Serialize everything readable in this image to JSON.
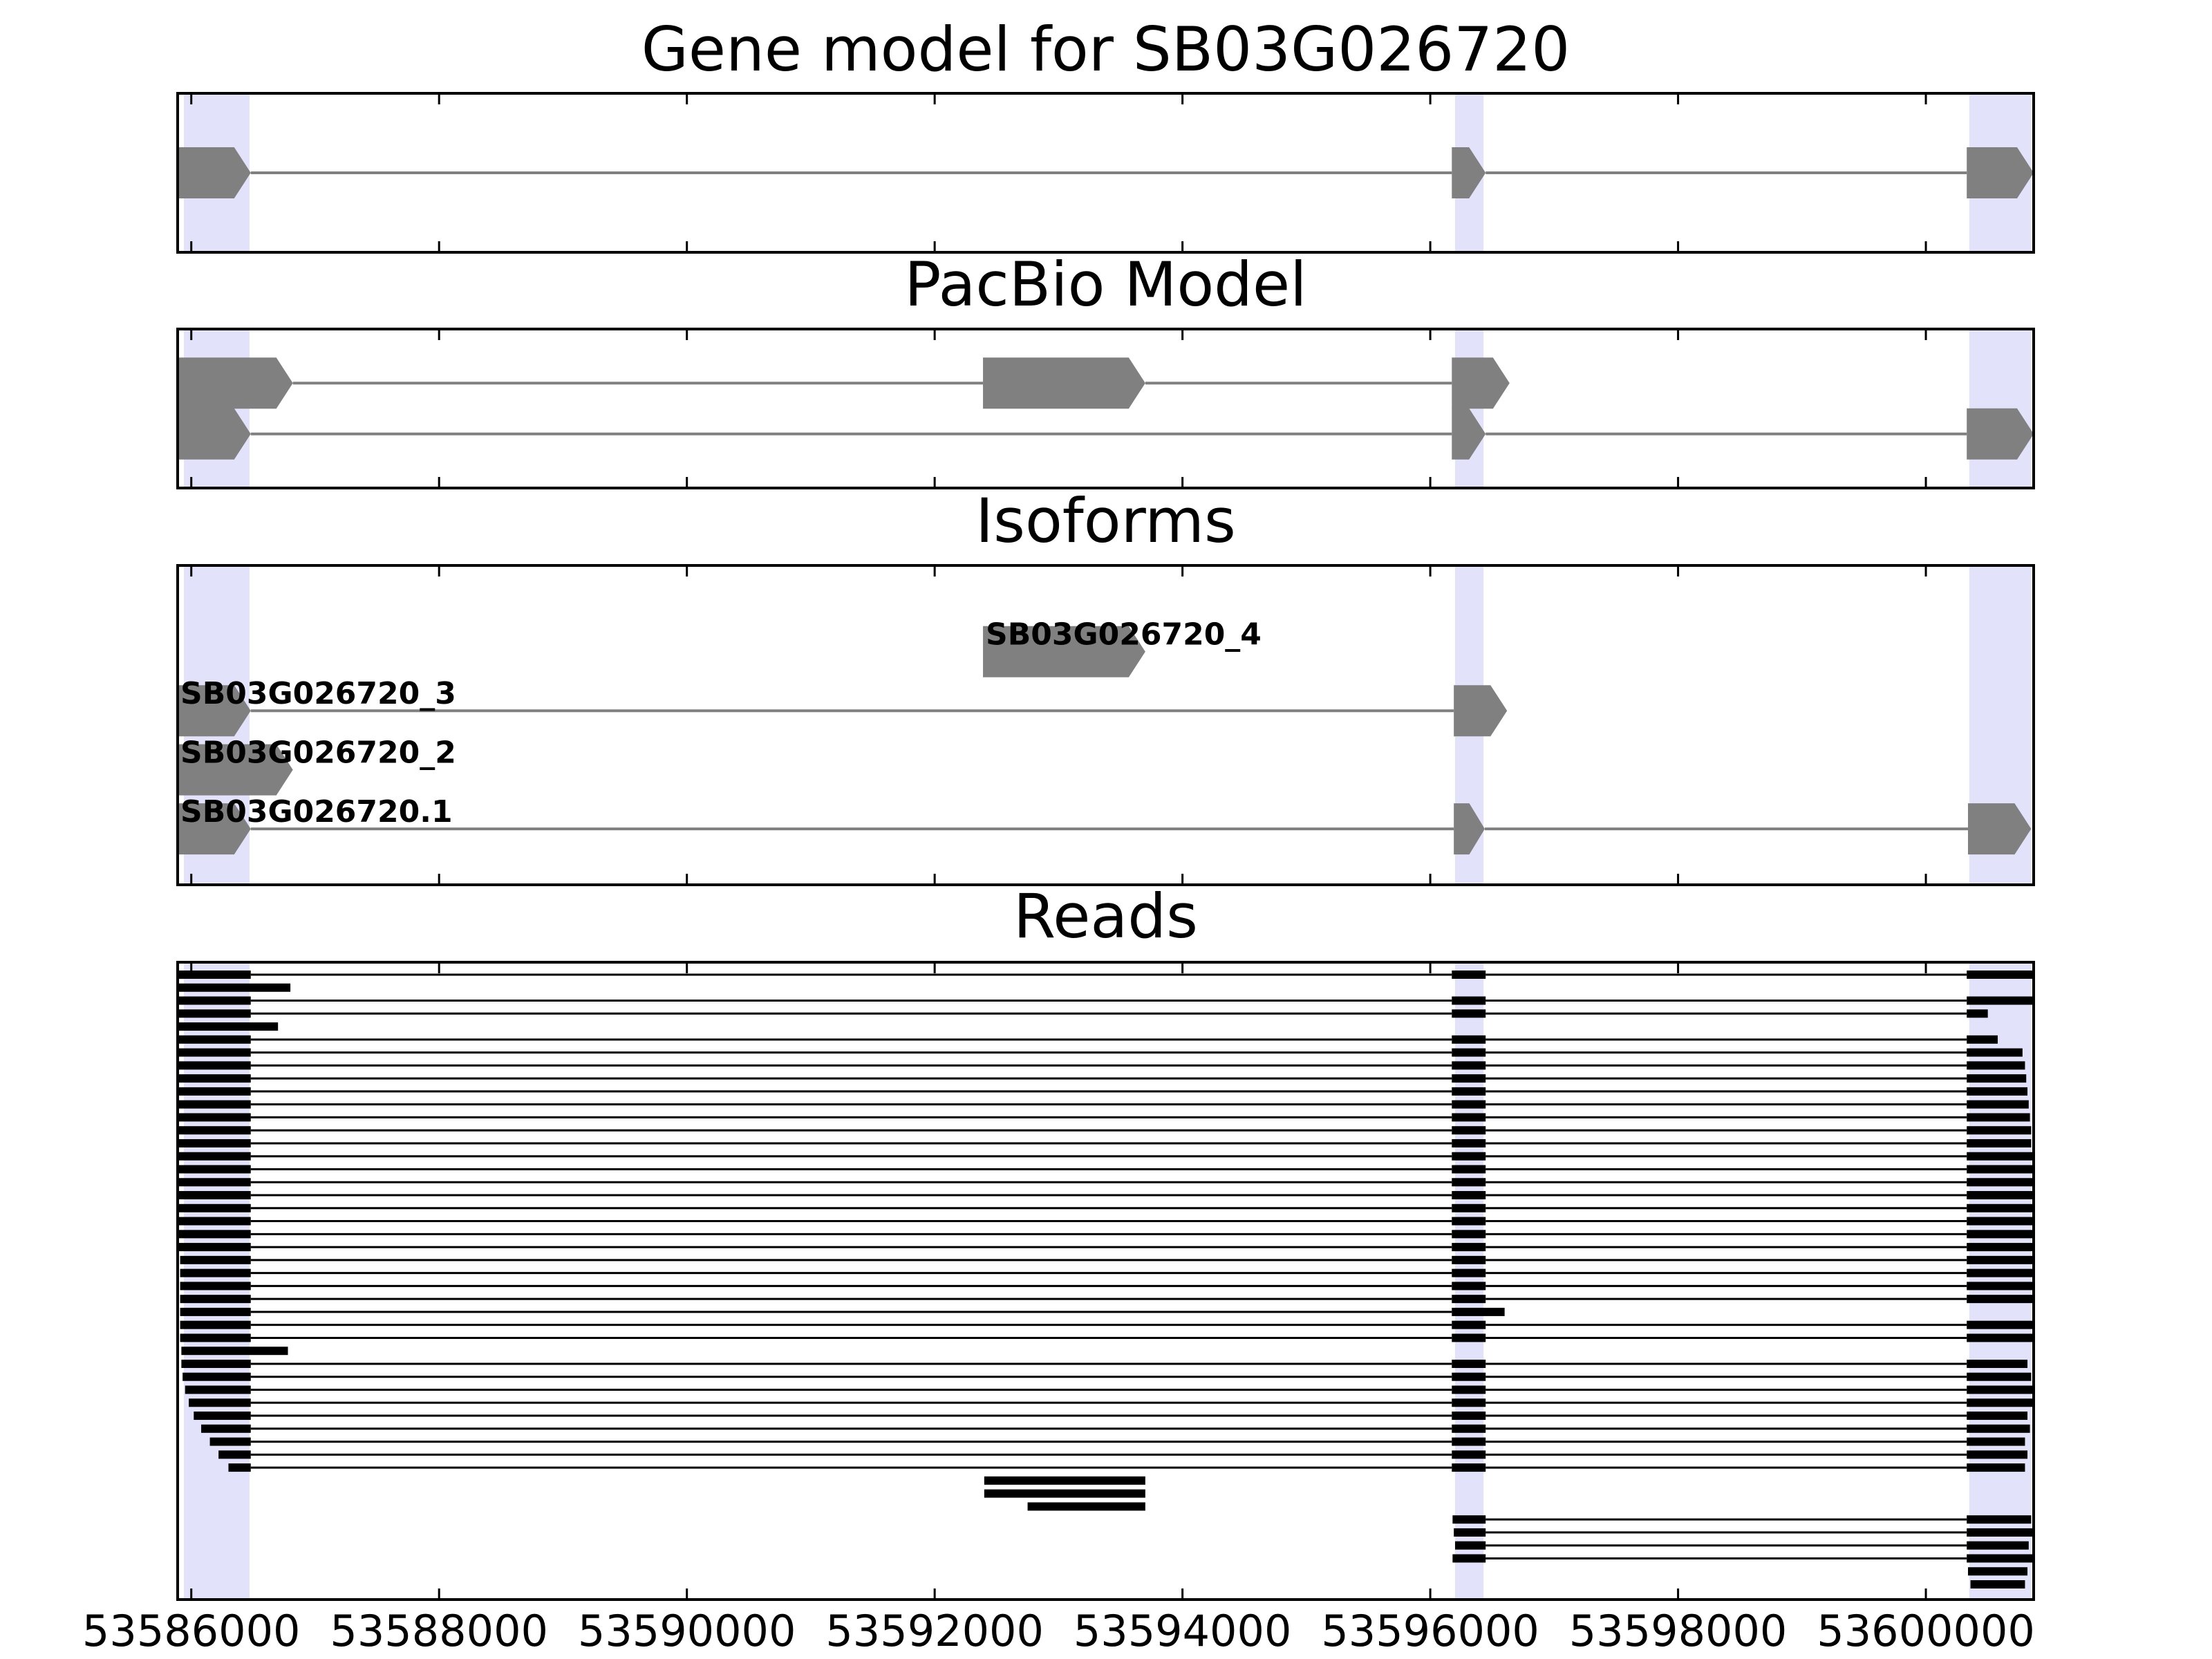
{
  "chart_data": [
    {
      "type": "gene-track",
      "title": "Gene model for SB03G026720",
      "xlim": [
        53585890,
        53600870
      ],
      "highlights": [
        [
          53585940,
          53586470
        ],
        [
          53596200,
          53596430
        ],
        [
          53600350,
          53600850
        ]
      ],
      "features": [
        {
          "exons": [
            [
              53585890,
              53586480
            ],
            [
              53596174,
              53596447
            ],
            [
              53600330,
              53600870
            ]
          ]
        }
      ]
    },
    {
      "type": "gene-track",
      "title": "PacBio Model",
      "xlim": [
        53585890,
        53600870
      ],
      "highlights": [
        [
          53585940,
          53586470
        ],
        [
          53596200,
          53596430
        ],
        [
          53600350,
          53600850
        ]
      ],
      "features": [
        {
          "exons": [
            [
              53585890,
              53586820
            ],
            [
              53592390,
              53593700
            ],
            [
              53596174,
              53596640
            ]
          ]
        },
        {
          "exons": [
            [
              53585890,
              53586480
            ],
            [
              53596174,
              53596447
            ],
            [
              53600330,
              53600870
            ]
          ]
        }
      ]
    },
    {
      "type": "gene-track",
      "title": "Isoforms",
      "xlim": [
        53585890,
        53600870
      ],
      "highlights": [
        [
          53585940,
          53586470
        ],
        [
          53596200,
          53596430
        ],
        [
          53600350,
          53600850
        ]
      ],
      "features": [
        {
          "name": "SB03G026720_4",
          "exons": [
            [
              53592390,
              53593700
            ]
          ]
        },
        {
          "name": "SB03G026720_3",
          "exons": [
            [
              53585890,
              53586480
            ],
            [
              53596190,
              53596620
            ]
          ]
        },
        {
          "name": "SB03G026720_2",
          "exons": [
            [
              53585890,
              53586820
            ]
          ]
        },
        {
          "name": "SB03G026720.1",
          "exons": [
            [
              53585890,
              53586480
            ],
            [
              53596190,
              53596440
            ],
            [
              53600340,
              53600850
            ]
          ]
        }
      ]
    },
    {
      "type": "reads",
      "title": "Reads",
      "xlim": [
        53585890,
        53600870
      ],
      "xticks": [
        53586000,
        53588000,
        53590000,
        53592000,
        53594000,
        53596000,
        53598000,
        53600000
      ],
      "highlights": [
        [
          53585940,
          53586470
        ],
        [
          53596200,
          53596430
        ],
        [
          53600350,
          53600850
        ]
      ],
      "reads": [
        [
          [
            53585900,
            53586480
          ],
          [
            53596174,
            53596447
          ],
          [
            53600330,
            53600860
          ]
        ],
        [
          [
            53585900,
            53586800
          ]
        ],
        [
          [
            53585900,
            53586480
          ],
          [
            53596174,
            53596447
          ],
          [
            53600330,
            53600870
          ]
        ],
        [
          [
            53585900,
            53586480
          ],
          [
            53596174,
            53596447
          ],
          [
            53600330,
            53600500
          ]
        ],
        [
          [
            53585900,
            53586700
          ]
        ],
        [
          [
            53585900,
            53586480
          ],
          [
            53596174,
            53596447
          ],
          [
            53600330,
            53600580
          ]
        ],
        [
          [
            53585900,
            53586480
          ],
          [
            53596174,
            53596447
          ],
          [
            53600330,
            53600780
          ]
        ],
        [
          [
            53585900,
            53586480
          ],
          [
            53596174,
            53596447
          ],
          [
            53600330,
            53600800
          ]
        ],
        [
          [
            53585900,
            53586480
          ],
          [
            53596174,
            53596447
          ],
          [
            53600330,
            53600810
          ]
        ],
        [
          [
            53585900,
            53586480
          ],
          [
            53596174,
            53596447
          ],
          [
            53600330,
            53600820
          ]
        ],
        [
          [
            53585900,
            53586480
          ],
          [
            53596174,
            53596447
          ],
          [
            53600330,
            53600830
          ]
        ],
        [
          [
            53585900,
            53586480
          ],
          [
            53596174,
            53596447
          ],
          [
            53600330,
            53600840
          ]
        ],
        [
          [
            53585900,
            53586480
          ],
          [
            53596174,
            53596447
          ],
          [
            53600330,
            53600850
          ]
        ],
        [
          [
            53585900,
            53586480
          ],
          [
            53596174,
            53596447
          ],
          [
            53600330,
            53600850
          ]
        ],
        [
          [
            53585900,
            53586480
          ],
          [
            53596174,
            53596447
          ],
          [
            53600330,
            53600860
          ]
        ],
        [
          [
            53585900,
            53586480
          ],
          [
            53596174,
            53596447
          ],
          [
            53600330,
            53600860
          ]
        ],
        [
          [
            53585900,
            53586480
          ],
          [
            53596174,
            53596447
          ],
          [
            53600330,
            53600860
          ]
        ],
        [
          [
            53585900,
            53586480
          ],
          [
            53596174,
            53596447
          ],
          [
            53600330,
            53600860
          ]
        ],
        [
          [
            53585900,
            53586480
          ],
          [
            53596174,
            53596447
          ],
          [
            53600330,
            53600860
          ]
        ],
        [
          [
            53585900,
            53586480
          ],
          [
            53596174,
            53596447
          ],
          [
            53600330,
            53600860
          ]
        ],
        [
          [
            53585900,
            53586480
          ],
          [
            53596174,
            53596447
          ],
          [
            53600330,
            53600860
          ]
        ],
        [
          [
            53585900,
            53586480
          ],
          [
            53596174,
            53596447
          ],
          [
            53600330,
            53600860
          ]
        ],
        [
          [
            53585910,
            53586480
          ],
          [
            53596174,
            53596447
          ],
          [
            53600330,
            53600860
          ]
        ],
        [
          [
            53585910,
            53586480
          ],
          [
            53596174,
            53596447
          ],
          [
            53600330,
            53600860
          ]
        ],
        [
          [
            53585910,
            53586480
          ],
          [
            53596174,
            53596447
          ],
          [
            53600330,
            53600860
          ]
        ],
        [
          [
            53585910,
            53586480
          ],
          [
            53596174,
            53596447
          ],
          [
            53600330,
            53600860
          ]
        ],
        [
          [
            53585910,
            53586480
          ],
          [
            53596174,
            53596600
          ]
        ],
        [
          [
            53585910,
            53586480
          ],
          [
            53596174,
            53596447
          ],
          [
            53600330,
            53600860
          ]
        ],
        [
          [
            53585910,
            53586480
          ],
          [
            53596174,
            53596447
          ],
          [
            53600330,
            53600860
          ]
        ],
        [
          [
            53585920,
            53586780
          ]
        ],
        [
          [
            53585920,
            53586480
          ],
          [
            53596174,
            53596447
          ],
          [
            53600330,
            53600820
          ]
        ],
        [
          [
            53585930,
            53586480
          ],
          [
            53596174,
            53596447
          ],
          [
            53600330,
            53600850
          ]
        ],
        [
          [
            53585950,
            53586480
          ],
          [
            53596174,
            53596447
          ],
          [
            53600330,
            53600860
          ]
        ],
        [
          [
            53585980,
            53586480
          ],
          [
            53596174,
            53596447
          ],
          [
            53600330,
            53600860
          ]
        ],
        [
          [
            53586020,
            53586480
          ],
          [
            53596174,
            53596447
          ],
          [
            53600330,
            53600820
          ]
        ],
        [
          [
            53586080,
            53586480
          ],
          [
            53596174,
            53596447
          ],
          [
            53600330,
            53600840
          ]
        ],
        [
          [
            53586150,
            53586480
          ],
          [
            53596174,
            53596447
          ],
          [
            53600330,
            53600800
          ]
        ],
        [
          [
            53586220,
            53586480
          ],
          [
            53596174,
            53596447
          ],
          [
            53600330,
            53600820
          ]
        ],
        [
          [
            53586300,
            53586480
          ],
          [
            53596174,
            53596447
          ],
          [
            53600330,
            53600800
          ]
        ],
        [
          [
            53592400,
            53593700
          ]
        ],
        [
          [
            53592400,
            53593700
          ]
        ],
        [
          [
            53592750,
            53593700
          ]
        ],
        [
          [
            53596180,
            53596447
          ],
          [
            53600330,
            53600850
          ]
        ],
        [
          [
            53596190,
            53596447
          ],
          [
            53600330,
            53600860
          ]
        ],
        [
          [
            53596200,
            53596447
          ],
          [
            53600330,
            53600830
          ]
        ],
        [
          [
            53596180,
            53596447
          ],
          [
            53600330,
            53600860
          ]
        ],
        [
          [
            53600340,
            53600820
          ]
        ],
        [
          [
            53600360,
            53600800
          ]
        ]
      ]
    }
  ]
}
